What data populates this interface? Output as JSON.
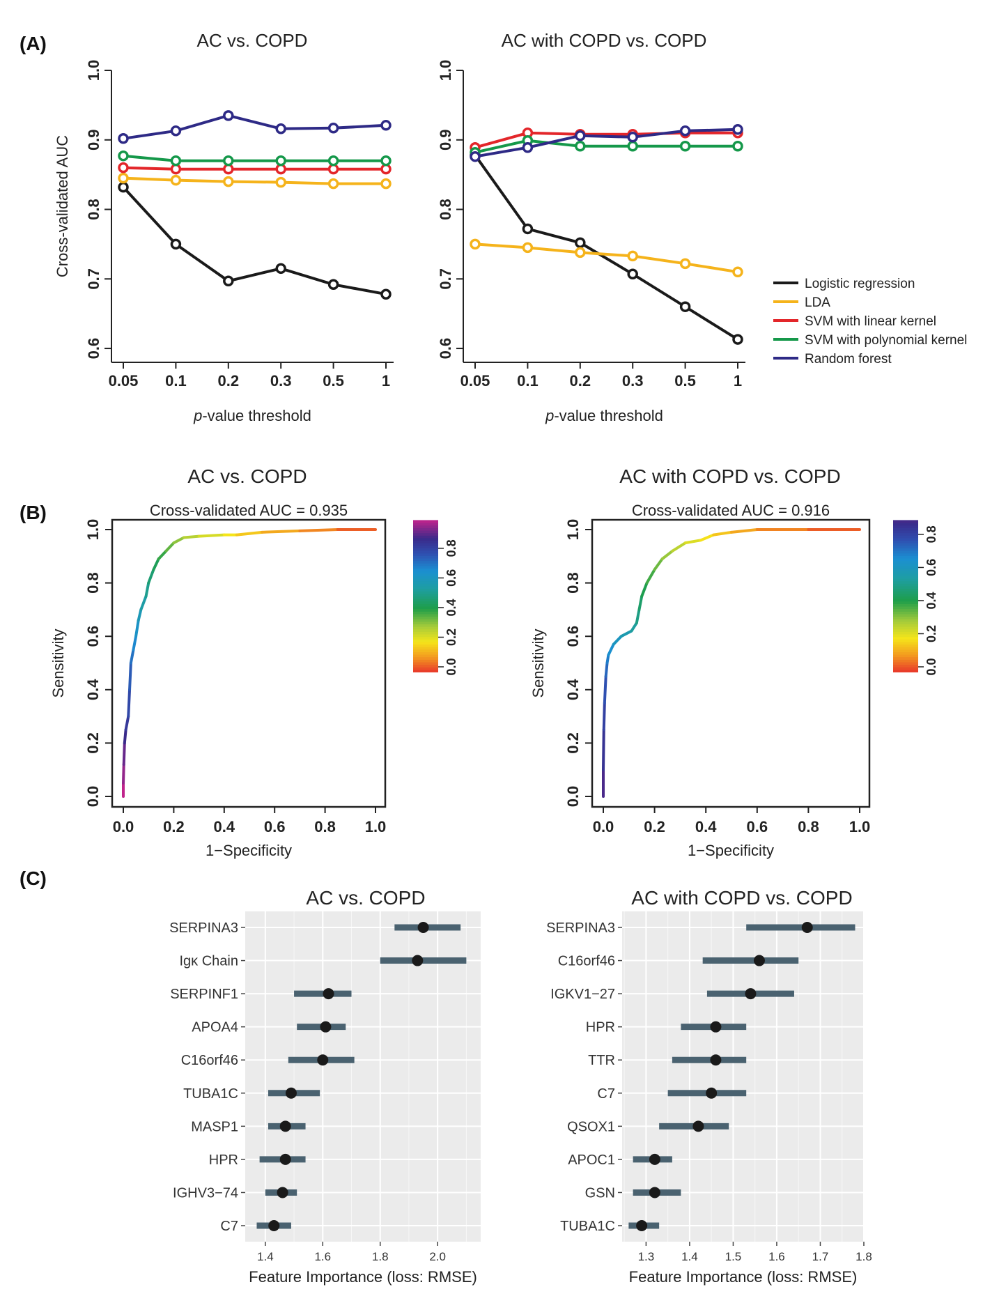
{
  "panel_labels": {
    "a": "(A)",
    "b": "(B)",
    "c": "(C)"
  },
  "chart_data": [
    {
      "id": "A1",
      "type": "line",
      "title": "AC vs. COPD",
      "xlabel_italic": "p",
      "xlabel_rest": "-value threshold",
      "ylabel": "Cross-validated AUC",
      "categories": [
        "0.05",
        "0.1",
        "0.2",
        "0.3",
        "0.5",
        "1"
      ],
      "yticks": [
        "0.6",
        "0.7",
        "0.8",
        "0.9",
        "1.0"
      ],
      "ylim": [
        0.58,
        1.0
      ],
      "series": [
        {
          "name": "Logistic regression",
          "color": "#1a1a1a",
          "values": [
            0.832,
            0.75,
            0.697,
            0.715,
            0.692,
            0.678
          ]
        },
        {
          "name": "LDA",
          "color": "#f5b31b",
          "values": [
            0.845,
            0.842,
            0.84,
            0.839,
            0.837,
            0.837
          ]
        },
        {
          "name": "SVM with linear kernel",
          "color": "#e3262a",
          "values": [
            0.86,
            0.858,
            0.858,
            0.858,
            0.858,
            0.858
          ]
        },
        {
          "name": "SVM with polynomial kernel",
          "color": "#15984a",
          "values": [
            0.877,
            0.87,
            0.87,
            0.87,
            0.87,
            0.87
          ]
        },
        {
          "name": "Random forest",
          "color": "#2e2a86",
          "values": [
            0.902,
            0.913,
            0.935,
            0.916,
            0.917,
            0.921
          ]
        }
      ]
    },
    {
      "id": "A2",
      "type": "line",
      "title": "AC with COPD vs. COPD",
      "xlabel_italic": "p",
      "xlabel_rest": "-value threshold",
      "ylabel": "",
      "categories": [
        "0.05",
        "0.1",
        "0.2",
        "0.3",
        "0.5",
        "1"
      ],
      "yticks": [
        "0.6",
        "0.7",
        "0.8",
        "0.9",
        "1.0"
      ],
      "ylim": [
        0.58,
        1.0
      ],
      "legend": "right",
      "series": [
        {
          "name": "Logistic regression",
          "color": "#1a1a1a",
          "values": [
            0.878,
            0.772,
            0.752,
            0.707,
            0.66,
            0.613
          ]
        },
        {
          "name": "LDA",
          "color": "#f5b31b",
          "values": [
            0.75,
            0.745,
            0.738,
            0.733,
            0.722,
            0.71
          ]
        },
        {
          "name": "SVM with linear kernel",
          "color": "#e3262a",
          "values": [
            0.889,
            0.91,
            0.908,
            0.908,
            0.91,
            0.91
          ]
        },
        {
          "name": "SVM with polynomial kernel",
          "color": "#15984a",
          "values": [
            0.882,
            0.899,
            0.891,
            0.891,
            0.891,
            0.891
          ]
        },
        {
          "name": "Random forest",
          "color": "#2e2a86",
          "values": [
            0.876,
            0.889,
            0.906,
            0.904,
            0.913,
            0.915
          ]
        }
      ]
    },
    {
      "id": "B1",
      "type": "line",
      "title": "AC vs. COPD",
      "subtitle": "Cross-validated AUC = 0.935",
      "xlabel": "1−Specificity",
      "ylabel": "Sensitivity",
      "xticks": [
        "0.0",
        "0.2",
        "0.4",
        "0.6",
        "0.8",
        "1.0"
      ],
      "yticks": [
        "0.0",
        "0.2",
        "0.4",
        "0.6",
        "0.8",
        "1.0"
      ],
      "colorbar_ticks": [
        "0.0",
        "0.2",
        "0.4",
        "0.6",
        "0.8"
      ],
      "colorbar_max": 0.95,
      "roc": [
        [
          0,
          0
        ],
        [
          0,
          0.05
        ],
        [
          0.002,
          0.12
        ],
        [
          0.005,
          0.2
        ],
        [
          0.01,
          0.25
        ],
        [
          0.02,
          0.3
        ],
        [
          0.025,
          0.4
        ],
        [
          0.03,
          0.5
        ],
        [
          0.04,
          0.55
        ],
        [
          0.05,
          0.6
        ],
        [
          0.06,
          0.66
        ],
        [
          0.07,
          0.7
        ],
        [
          0.09,
          0.75
        ],
        [
          0.1,
          0.8
        ],
        [
          0.12,
          0.85
        ],
        [
          0.14,
          0.89
        ],
        [
          0.17,
          0.92
        ],
        [
          0.2,
          0.95
        ],
        [
          0.24,
          0.97
        ],
        [
          0.3,
          0.975
        ],
        [
          0.4,
          0.98
        ],
        [
          0.45,
          0.98
        ],
        [
          0.55,
          0.99
        ],
        [
          0.7,
          0.995
        ],
        [
          0.85,
          1.0
        ],
        [
          1.0,
          1.0
        ]
      ]
    },
    {
      "id": "B2",
      "type": "line",
      "title": "AC with COPD vs. COPD",
      "subtitle": "Cross-validated AUC = 0.916",
      "xlabel": "1−Specificity",
      "ylabel": "Sensitivity",
      "xticks": [
        "0.0",
        "0.2",
        "0.4",
        "0.6",
        "0.8",
        "1.0"
      ],
      "yticks": [
        "0.0",
        "0.2",
        "0.4",
        "0.6",
        "0.8",
        "1.0"
      ],
      "colorbar_ticks": [
        "0.0",
        "0.2",
        "0.4",
        "0.6",
        "0.8"
      ],
      "colorbar_max": 0.85,
      "roc": [
        [
          0,
          0
        ],
        [
          0,
          0.1
        ],
        [
          0.002,
          0.25
        ],
        [
          0.005,
          0.35
        ],
        [
          0.01,
          0.45
        ],
        [
          0.015,
          0.5
        ],
        [
          0.02,
          0.53
        ],
        [
          0.04,
          0.57
        ],
        [
          0.07,
          0.6
        ],
        [
          0.11,
          0.62
        ],
        [
          0.13,
          0.65
        ],
        [
          0.14,
          0.7
        ],
        [
          0.15,
          0.75
        ],
        [
          0.17,
          0.8
        ],
        [
          0.2,
          0.85
        ],
        [
          0.23,
          0.89
        ],
        [
          0.27,
          0.92
        ],
        [
          0.32,
          0.95
        ],
        [
          0.38,
          0.96
        ],
        [
          0.43,
          0.98
        ],
        [
          0.5,
          0.99
        ],
        [
          0.6,
          1.0
        ],
        [
          0.8,
          1.0
        ],
        [
          1.0,
          1.0
        ]
      ]
    },
    {
      "id": "C1",
      "type": "scatter",
      "title": "AC vs. COPD",
      "xlabel": "Feature Importance (loss: RMSE)",
      "xlim": [
        1.33,
        2.15
      ],
      "xticks": [
        1.4,
        1.6,
        1.8,
        2.0
      ],
      "xtick_labels": [
        "1.4",
        "1.6",
        "1.8",
        "2.0"
      ],
      "features": [
        {
          "label": "SERPINA3",
          "value": 1.95,
          "low": 1.85,
          "high": 2.08
        },
        {
          "label": "Igκ Chain",
          "value": 1.93,
          "low": 1.8,
          "high": 2.1
        },
        {
          "label": "SERPINF1",
          "value": 1.62,
          "low": 1.5,
          "high": 1.7
        },
        {
          "label": "APOA4",
          "value": 1.61,
          "low": 1.51,
          "high": 1.68
        },
        {
          "label": "C16orf46",
          "value": 1.6,
          "low": 1.48,
          "high": 1.71
        },
        {
          "label": "TUBA1C",
          "value": 1.49,
          "low": 1.41,
          "high": 1.59
        },
        {
          "label": "MASP1",
          "value": 1.47,
          "low": 1.41,
          "high": 1.54
        },
        {
          "label": "HPR",
          "value": 1.47,
          "low": 1.38,
          "high": 1.54
        },
        {
          "label": "IGHV3−74",
          "value": 1.46,
          "low": 1.4,
          "high": 1.51
        },
        {
          "label": "C7",
          "value": 1.43,
          "low": 1.37,
          "high": 1.49
        }
      ]
    },
    {
      "id": "C2",
      "type": "scatter",
      "title": "AC with COPD vs. COPD",
      "xlabel": "Feature Importance (loss: RMSE)",
      "xlim": [
        1.245,
        1.8
      ],
      "xticks": [
        1.3,
        1.4,
        1.5,
        1.6,
        1.7,
        1.8
      ],
      "xtick_labels": [
        "1.3",
        "1.4",
        "1.5",
        "1.6",
        "1.7",
        "1.8"
      ],
      "features": [
        {
          "label": "SERPINA3",
          "value": 1.67,
          "low": 1.53,
          "high": 1.78
        },
        {
          "label": "C16orf46",
          "value": 1.56,
          "low": 1.43,
          "high": 1.65
        },
        {
          "label": "IGKV1−27",
          "value": 1.54,
          "low": 1.44,
          "high": 1.64
        },
        {
          "label": "HPR",
          "value": 1.46,
          "low": 1.38,
          "high": 1.53
        },
        {
          "label": "TTR",
          "value": 1.46,
          "low": 1.36,
          "high": 1.53
        },
        {
          "label": "C7",
          "value": 1.45,
          "low": 1.35,
          "high": 1.53
        },
        {
          "label": "QSOX1",
          "value": 1.42,
          "low": 1.33,
          "high": 1.49
        },
        {
          "label": "APOC1",
          "value": 1.32,
          "low": 1.27,
          "high": 1.36
        },
        {
          "label": "GSN",
          "value": 1.32,
          "low": 1.27,
          "high": 1.38
        },
        {
          "label": "TUBA1C",
          "value": 1.29,
          "low": 1.26,
          "high": 1.33
        }
      ]
    }
  ]
}
